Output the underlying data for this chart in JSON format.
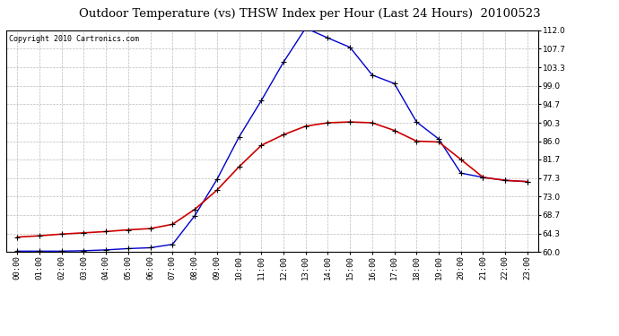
{
  "title": "Outdoor Temperature (vs) THSW Index per Hour (Last 24 Hours)  20100523",
  "copyright": "Copyright 2010 Cartronics.com",
  "hours": [
    "00:00",
    "01:00",
    "02:00",
    "03:00",
    "04:00",
    "05:00",
    "06:00",
    "07:00",
    "08:00",
    "09:00",
    "10:00",
    "11:00",
    "12:00",
    "13:00",
    "14:00",
    "15:00",
    "16:00",
    "17:00",
    "18:00",
    "19:00",
    "20:00",
    "21:00",
    "22:00",
    "23:00"
  ],
  "temp": [
    63.5,
    63.8,
    64.2,
    64.5,
    64.8,
    65.2,
    65.5,
    66.5,
    70.0,
    74.5,
    80.0,
    85.0,
    87.5,
    89.5,
    90.3,
    90.5,
    90.3,
    88.5,
    86.0,
    85.8,
    81.7,
    77.5,
    76.8,
    76.5
  ],
  "thsw": [
    60.2,
    60.2,
    60.2,
    60.3,
    60.5,
    60.8,
    61.0,
    61.8,
    68.5,
    77.0,
    87.0,
    95.5,
    104.5,
    112.5,
    110.2,
    108.0,
    101.5,
    99.5,
    90.5,
    86.5,
    78.5,
    77.5,
    76.8,
    76.5
  ],
  "y_ticks": [
    60.0,
    64.3,
    68.7,
    73.0,
    77.3,
    81.7,
    86.0,
    90.3,
    94.7,
    99.0,
    103.3,
    107.7,
    112.0
  ],
  "ymin": 60.0,
  "ymax": 112.0,
  "temp_color": "#cc0000",
  "thsw_color": "#0000cc",
  "bg_color": "#ffffff",
  "grid_color": "#bbbbbb",
  "title_fontsize": 9.5,
  "axis_fontsize": 6.5,
  "copyright_fontsize": 6
}
